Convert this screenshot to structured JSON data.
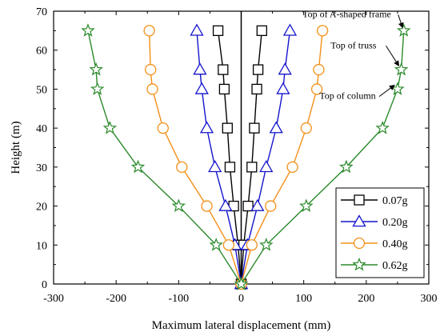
{
  "chart_data": {
    "type": "line",
    "title": "",
    "xlabel": "Maximum lateral displacement (mm)",
    "ylabel": "Height (m)",
    "xlim": [
      -300,
      300
    ],
    "ylim": [
      0,
      70
    ],
    "xticks": [
      -300,
      -200,
      -100,
      0,
      100,
      200,
      300
    ],
    "yticks": [
      0,
      10,
      20,
      30,
      40,
      50,
      60,
      70
    ],
    "legend_position": "bottom-right",
    "grid": false,
    "series": [
      {
        "name": "0.07g",
        "color": "#000000",
        "marker": "square",
        "left": [
          [
            0,
            0
          ],
          [
            -5,
            10
          ],
          [
            -12,
            20
          ],
          [
            -18,
            30
          ],
          [
            -22,
            40
          ],
          [
            -27,
            50
          ],
          [
            -29,
            55
          ],
          [
            -37,
            65
          ]
        ],
        "right": [
          [
            0,
            0
          ],
          [
            4,
            10
          ],
          [
            11,
            20
          ],
          [
            17,
            30
          ],
          [
            21,
            40
          ],
          [
            25,
            50
          ],
          [
            27,
            55
          ],
          [
            33,
            65
          ]
        ]
      },
      {
        "name": "0.20g",
        "color": "#1414cc",
        "marker": "triangle",
        "left": [
          [
            0,
            0
          ],
          [
            -10,
            10
          ],
          [
            -25,
            20
          ],
          [
            -42,
            30
          ],
          [
            -55,
            40
          ],
          [
            -63,
            50
          ],
          [
            -66,
            55
          ],
          [
            -71,
            65
          ]
        ],
        "right": [
          [
            0,
            0
          ],
          [
            10,
            10
          ],
          [
            26,
            20
          ],
          [
            40,
            30
          ],
          [
            56,
            40
          ],
          [
            67,
            50
          ],
          [
            70,
            55
          ],
          [
            78,
            65
          ]
        ]
      },
      {
        "name": "0.40g",
        "color": "#f39019",
        "marker": "circle",
        "left": [
          [
            0,
            0
          ],
          [
            -20,
            10
          ],
          [
            -55,
            20
          ],
          [
            -95,
            30
          ],
          [
            -125,
            40
          ],
          [
            -142,
            50
          ],
          [
            -145,
            55
          ],
          [
            -147,
            65
          ]
        ],
        "right": [
          [
            0,
            0
          ],
          [
            17,
            10
          ],
          [
            47,
            20
          ],
          [
            82,
            30
          ],
          [
            104,
            40
          ],
          [
            121,
            50
          ],
          [
            124,
            55
          ],
          [
            130,
            65
          ]
        ]
      },
      {
        "name": "0.62g",
        "color": "#2a8a2a",
        "marker": "star",
        "left": [
          [
            0,
            0
          ],
          [
            -40,
            10
          ],
          [
            -100,
            20
          ],
          [
            -165,
            30
          ],
          [
            -210,
            40
          ],
          [
            -230,
            50
          ],
          [
            -232,
            55
          ],
          [
            -245,
            65
          ]
        ],
        "right": [
          [
            0,
            0
          ],
          [
            40,
            10
          ],
          [
            104,
            20
          ],
          [
            168,
            30
          ],
          [
            226,
            40
          ],
          [
            250,
            50
          ],
          [
            256,
            55
          ],
          [
            260,
            65
          ]
        ]
      }
    ],
    "annotations": [
      {
        "text": "Top of A-shaped frame",
        "text_x": 98,
        "text_y": 68.5,
        "point_x": 258,
        "point_y": 65.8
      },
      {
        "text": "Top of truss",
        "text_x": 143,
        "text_y": 60.5,
        "point_x": 252,
        "point_y": 56
      },
      {
        "text": "Top of column",
        "text_x": 125,
        "text_y": 47.5,
        "point_x": 245,
        "point_y": 51
      }
    ]
  }
}
